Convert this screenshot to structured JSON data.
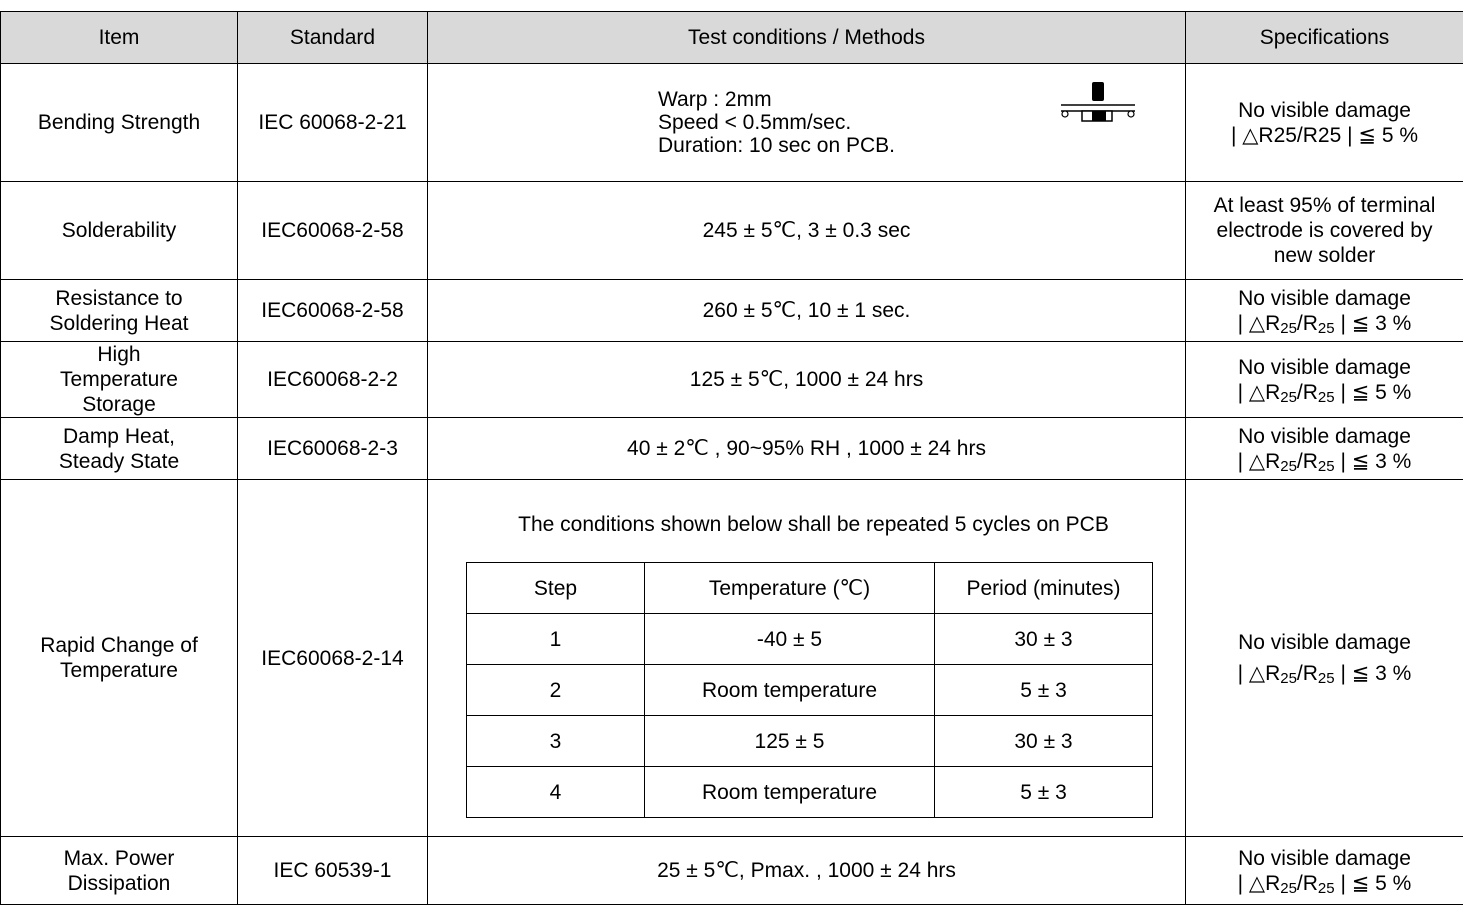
{
  "headers": {
    "item": "Item",
    "standard": "Standard",
    "conditions": "Test conditions / Methods",
    "specifications": "Specifications"
  },
  "rows": [
    {
      "item": "Bending Strength",
      "standard": "IEC 60068-2-21",
      "conditions": [
        "Warp : 2mm",
        "Speed  <  0.5mm/sec.",
        "Duration: 10 sec on PCB."
      ],
      "spec": [
        "No visible damage",
        "|  △R25/R25  |  ≦  5 %"
      ]
    },
    {
      "item": "Solderability",
      "standard": "IEC60068-2-58",
      "conditions": "245 ± 5℃, 3 ± 0.3 sec",
      "spec": [
        "At least 95% of terminal",
        "electrode is covered by",
        "new solder"
      ]
    },
    {
      "item": [
        "Resistance to",
        "Soldering Heat"
      ],
      "standard": "IEC60068-2-58",
      "conditions": "260 ± 5℃, 10 ± 1 sec.",
      "spec": [
        "No visible damage",
        "|  △R",
        "25",
        "/R",
        "25",
        "  |  ≦  3 %"
      ]
    },
    {
      "item": [
        "High",
        "Temperature",
        "Storage"
      ],
      "standard": "IEC60068-2-2",
      "conditions": "125 ± 5℃, 1000 ± 24 hrs",
      "spec": [
        "No visible damage",
        "|  △R",
        "25",
        "/R",
        "25",
        "  |  ≦  5 %"
      ]
    },
    {
      "item": [
        "Damp Heat,",
        "Steady State"
      ],
      "standard": "IEC60068-2-3",
      "conditions": "40 ± 2℃  ,   90~95% RH , 1000 ± 24 hrs",
      "spec": [
        "No visible damage",
        "|  △R",
        "25",
        "/R",
        "25",
        "  |  ≦  3 %"
      ]
    },
    {
      "item": [
        "Rapid Change of",
        "Temperature"
      ],
      "standard": "IEC60068-2-14",
      "conditions": "The conditions shown below shall be repeated 5 cycles on PCB",
      "spec": [
        "No visible damage",
        "|  △R",
        "25",
        "/R",
        "25",
        "  |  ≦  3 %"
      ],
      "cycle_table": {
        "headers": [
          "Step",
          "Temperature (℃)",
          "Period (minutes)"
        ],
        "rows": [
          [
            "1",
            "-40 ± 5",
            "30 ± 3"
          ],
          [
            "2",
            "Room temperature",
            "5 ± 3"
          ],
          [
            "3",
            "125 ± 5",
            "30 ± 3"
          ],
          [
            "4",
            "Room temperature",
            "5 ± 3"
          ]
        ]
      }
    },
    {
      "item": [
        "Max. Power",
        "Dissipation"
      ],
      "standard": "IEC 60539-1",
      "conditions": "25 ± 5℃, Pmax. , 1000 ± 24 hrs",
      "spec": [
        "No visible damage",
        "|  △R",
        "25",
        "/R",
        "25",
        "  |  ≦  5 %"
      ]
    }
  ],
  "icons": {
    "bending": "pcb-bending-press-icon"
  }
}
